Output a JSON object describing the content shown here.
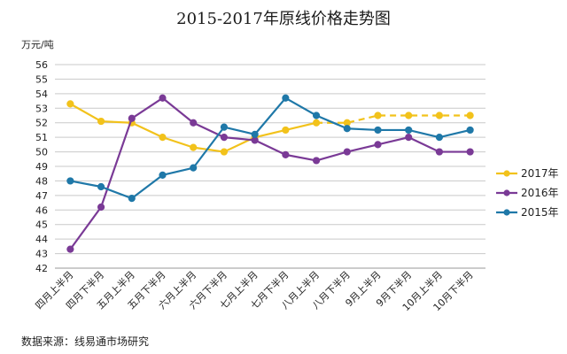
{
  "chart_data": {
    "type": "line",
    "title": "2015-2017年原线价格走势图",
    "ylabel": "万元/吨",
    "xlabel": "",
    "source": "数据来源：线易通市场研究",
    "ylim": [
      42,
      56
    ],
    "yticks": [
      42,
      43,
      44,
      45,
      46,
      47,
      48,
      49,
      50,
      51,
      52,
      53,
      54,
      55,
      56
    ],
    "grid": true,
    "legend_position": "right",
    "categories": [
      "四月上半月",
      "四月下半月",
      "五月上半月",
      "五月下半月",
      "六月上半月",
      "六月下半月",
      "七月上半月",
      "七月下半月",
      "八月上半月",
      "八月下半月",
      "9月上半月",
      "9月下半月",
      "10月上半月",
      "10月下半月"
    ],
    "series": [
      {
        "name": "2017年",
        "color": "#F2C21B",
        "values": [
          53.3,
          52.1,
          52.0,
          51.0,
          50.3,
          50.0,
          51.0,
          51.5,
          52.0,
          52.0,
          52.5,
          52.5,
          52.5,
          52.5
        ],
        "solid_points": 9,
        "dashed_after": 8
      },
      {
        "name": "2016年",
        "color": "#7A3A96",
        "values": [
          43.3,
          46.2,
          52.3,
          53.7,
          52.0,
          51.0,
          50.8,
          49.8,
          49.4,
          50.0,
          50.5,
          51.0,
          50.0,
          50.0
        ]
      },
      {
        "name": "2015年",
        "color": "#1F78A8",
        "values": [
          48.0,
          47.6,
          46.8,
          48.4,
          48.9,
          51.7,
          51.2,
          53.7,
          52.5,
          51.6,
          51.5,
          51.5,
          51.0,
          51.5
        ]
      }
    ]
  }
}
